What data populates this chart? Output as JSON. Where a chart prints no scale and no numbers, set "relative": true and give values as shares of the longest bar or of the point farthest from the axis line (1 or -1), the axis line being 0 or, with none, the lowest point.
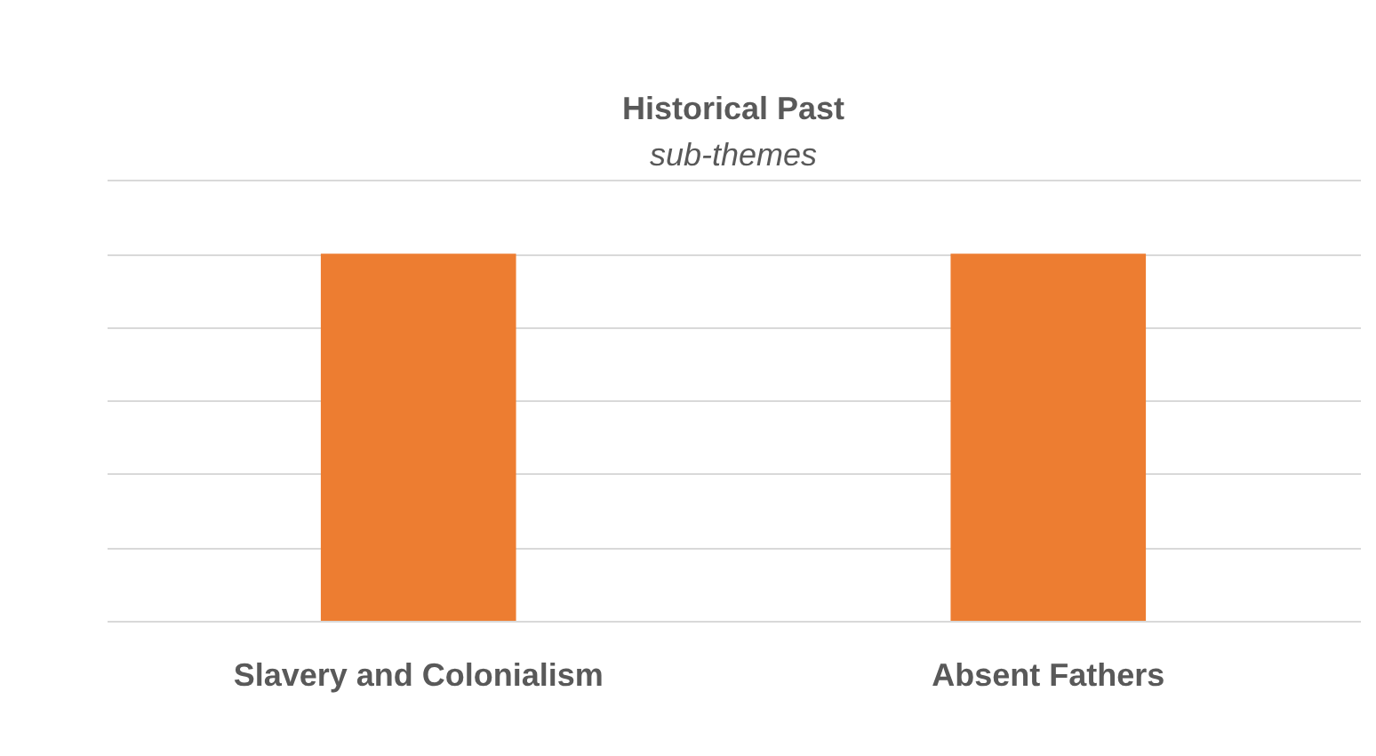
{
  "chart_data": {
    "type": "bar",
    "title": "Historical Past",
    "subtitle": "sub-themes",
    "categories": [
      "Slavery and Colonialism",
      "Absent Fathers"
    ],
    "values": [
      1,
      1
    ],
    "color": "#ed7d31",
    "relative": true,
    "grid": true
  }
}
